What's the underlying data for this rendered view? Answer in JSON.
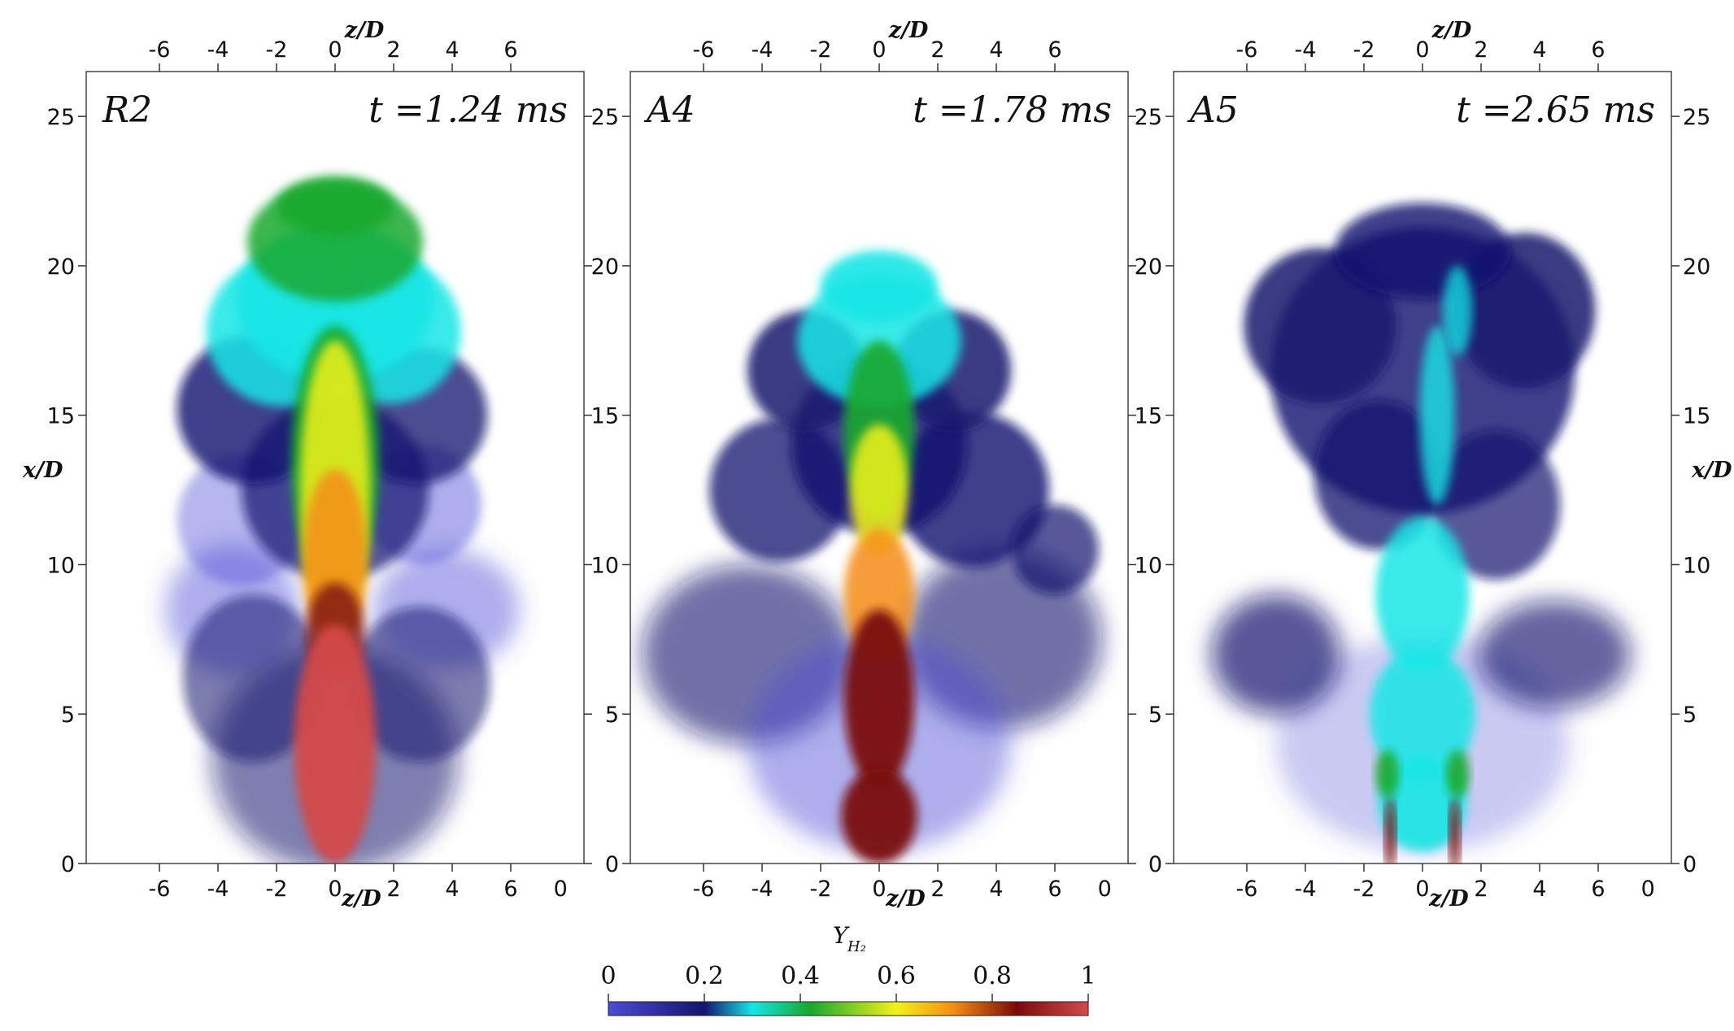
{
  "figure": {
    "panels": [
      {
        "id": "R2",
        "label": "R2",
        "time": "t =1.24 ms",
        "shape": "R2"
      },
      {
        "id": "A4",
        "label": "A4",
        "time": "t =1.78 ms",
        "shape": "A4"
      },
      {
        "id": "A5",
        "label": "A5",
        "time": "t =2.65 ms",
        "shape": "A5"
      }
    ],
    "x_axis": {
      "title": "z/D",
      "ticks": [
        "-6",
        "-4",
        "-2",
        "0",
        "2",
        "4",
        "6"
      ],
      "extra_bottom_label": "0",
      "range": [
        -8.5,
        8.5
      ]
    },
    "y_axis": {
      "title": "x/D",
      "ticks": [
        "0",
        "5",
        "10",
        "15",
        "20",
        "25"
      ],
      "range": [
        0,
        26.5
      ]
    },
    "colorbar": {
      "title": "Y",
      "subscript": "H₂",
      "ticks": [
        "0",
        "0.2",
        "0.4",
        "0.6",
        "0.8",
        "1"
      ],
      "range": [
        0,
        1
      ],
      "colors": [
        "#4b4bd8",
        "#14146e",
        "#16e6e6",
        "#16a82e",
        "#f2f21a",
        "#f48c14",
        "#7a0a0a",
        "#d44a4a"
      ]
    }
  }
}
